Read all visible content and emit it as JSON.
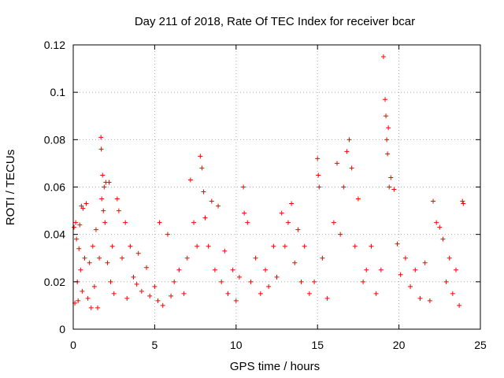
{
  "chart_data": {
    "type": "scatter",
    "title": "Day 211 of 2018, Rate Of TEC Index for receiver bcar",
    "xlabel": "GPS time / hours",
    "ylabel": "ROTI / TECUs",
    "xlim": [
      0,
      25
    ],
    "ylim": [
      0,
      0.12
    ],
    "x_ticks": [
      "0",
      "5",
      "10",
      "15",
      "20",
      "25"
    ],
    "y_ticks": [
      "0",
      "0.02",
      "0.04",
      "0.06",
      "0.08",
      "0.1",
      "0.12"
    ],
    "grid": true,
    "marker": "+",
    "color": "#ff0000",
    "series": [
      {
        "name": "bcar",
        "points": [
          [
            0.05,
            0.043
          ],
          [
            0.1,
            0.011
          ],
          [
            0.15,
            0.045
          ],
          [
            0.2,
            0.038
          ],
          [
            0.25,
            0.02
          ],
          [
            0.3,
            0.012
          ],
          [
            0.35,
            0.034
          ],
          [
            0.4,
            0.044
          ],
          [
            0.45,
            0.025
          ],
          [
            0.5,
            0.052
          ],
          [
            0.55,
            0.016
          ],
          [
            0.6,
            0.051
          ],
          [
            0.7,
            0.03
          ],
          [
            0.8,
            0.053
          ],
          [
            0.9,
            0.013
          ],
          [
            1.0,
            0.028
          ],
          [
            1.1,
            0.009
          ],
          [
            1.2,
            0.035
          ],
          [
            1.3,
            0.018
          ],
          [
            1.4,
            0.042
          ],
          [
            1.5,
            0.009
          ],
          [
            1.6,
            0.03
          ],
          [
            1.7,
            0.081
          ],
          [
            1.72,
            0.076
          ],
          [
            1.75,
            0.055
          ],
          [
            1.8,
            0.065
          ],
          [
            1.85,
            0.05
          ],
          [
            1.9,
            0.06
          ],
          [
            1.95,
            0.045
          ],
          [
            2.0,
            0.062
          ],
          [
            2.1,
            0.028
          ],
          [
            2.2,
            0.062
          ],
          [
            2.3,
            0.02
          ],
          [
            2.4,
            0.035
          ],
          [
            2.5,
            0.015
          ],
          [
            2.7,
            0.055
          ],
          [
            2.8,
            0.05
          ],
          [
            3.0,
            0.03
          ],
          [
            3.2,
            0.045
          ],
          [
            3.3,
            0.013
          ],
          [
            3.5,
            0.035
          ],
          [
            3.7,
            0.022
          ],
          [
            3.9,
            0.019
          ],
          [
            4.0,
            0.032
          ],
          [
            4.2,
            0.016
          ],
          [
            4.5,
            0.026
          ],
          [
            4.7,
            0.014
          ],
          [
            5.0,
            0.018
          ],
          [
            5.2,
            0.012
          ],
          [
            5.3,
            0.045
          ],
          [
            5.5,
            0.01
          ],
          [
            5.8,
            0.04
          ],
          [
            6.0,
            0.014
          ],
          [
            6.2,
            0.02
          ],
          [
            6.5,
            0.025
          ],
          [
            6.8,
            0.015
          ],
          [
            7.0,
            0.03
          ],
          [
            7.2,
            0.063
          ],
          [
            7.4,
            0.045
          ],
          [
            7.6,
            0.035
          ],
          [
            7.8,
            0.073
          ],
          [
            7.9,
            0.068
          ],
          [
            8.0,
            0.058
          ],
          [
            8.1,
            0.047
          ],
          [
            8.3,
            0.035
          ],
          [
            8.5,
            0.054
          ],
          [
            8.7,
            0.025
          ],
          [
            8.9,
            0.052
          ],
          [
            9.1,
            0.02
          ],
          [
            9.3,
            0.033
          ],
          [
            9.5,
            0.015
          ],
          [
            9.8,
            0.025
          ],
          [
            10.0,
            0.012
          ],
          [
            10.2,
            0.022
          ],
          [
            10.45,
            0.06
          ],
          [
            10.5,
            0.049
          ],
          [
            10.7,
            0.045
          ],
          [
            10.9,
            0.02
          ],
          [
            11.2,
            0.03
          ],
          [
            11.5,
            0.015
          ],
          [
            11.8,
            0.025
          ],
          [
            12.0,
            0.018
          ],
          [
            12.3,
            0.035
          ],
          [
            12.5,
            0.022
          ],
          [
            12.8,
            0.049
          ],
          [
            13.0,
            0.035
          ],
          [
            13.2,
            0.045
          ],
          [
            13.4,
            0.053
          ],
          [
            13.6,
            0.028
          ],
          [
            13.8,
            0.042
          ],
          [
            14.0,
            0.02
          ],
          [
            14.2,
            0.035
          ],
          [
            14.5,
            0.015
          ],
          [
            14.8,
            0.02
          ],
          [
            15.0,
            0.072
          ],
          [
            15.05,
            0.065
          ],
          [
            15.1,
            0.06
          ],
          [
            15.3,
            0.03
          ],
          [
            15.6,
            0.013
          ],
          [
            16.0,
            0.045
          ],
          [
            16.2,
            0.07
          ],
          [
            16.4,
            0.04
          ],
          [
            16.6,
            0.06
          ],
          [
            16.8,
            0.075
          ],
          [
            16.95,
            0.08
          ],
          [
            17.1,
            0.068
          ],
          [
            17.3,
            0.035
          ],
          [
            17.5,
            0.055
          ],
          [
            17.8,
            0.02
          ],
          [
            18.0,
            0.025
          ],
          [
            18.3,
            0.035
          ],
          [
            18.6,
            0.015
          ],
          [
            18.9,
            0.025
          ],
          [
            19.05,
            0.115
          ],
          [
            19.15,
            0.097
          ],
          [
            19.2,
            0.09
          ],
          [
            19.25,
            0.08
          ],
          [
            19.3,
            0.074
          ],
          [
            19.35,
            0.085
          ],
          [
            19.4,
            0.06
          ],
          [
            19.5,
            0.064
          ],
          [
            19.7,
            0.059
          ],
          [
            19.9,
            0.036
          ],
          [
            20.1,
            0.023
          ],
          [
            20.4,
            0.03
          ],
          [
            20.7,
            0.018
          ],
          [
            21.0,
            0.025
          ],
          [
            21.3,
            0.013
          ],
          [
            21.6,
            0.028
          ],
          [
            21.9,
            0.012
          ],
          [
            22.1,
            0.054
          ],
          [
            22.3,
            0.045
          ],
          [
            22.5,
            0.043
          ],
          [
            22.7,
            0.038
          ],
          [
            22.9,
            0.02
          ],
          [
            23.1,
            0.03
          ],
          [
            23.3,
            0.015
          ],
          [
            23.5,
            0.025
          ],
          [
            23.7,
            0.01
          ],
          [
            23.9,
            0.054
          ],
          [
            23.95,
            0.053
          ]
        ]
      }
    ]
  }
}
